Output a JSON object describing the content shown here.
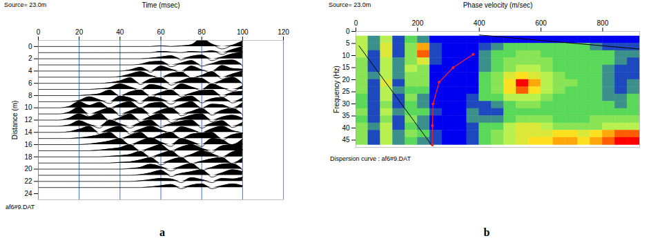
{
  "chart_data": [
    {
      "type": "wiggle",
      "panel_label": "a",
      "source": "Source= 23.0m",
      "file_label": "af6#9.DAT",
      "x_label": "Time (msec)",
      "y_label": "Distance (m)",
      "xlim": [
        0,
        120
      ],
      "xticks": [
        0,
        20,
        40,
        60,
        80,
        100,
        120
      ],
      "ylim": [
        -1,
        25
      ],
      "yticks": [
        0,
        2,
        4,
        6,
        8,
        10,
        12,
        14,
        16,
        18,
        20,
        22,
        24
      ],
      "grid": true,
      "color": "#000000",
      "time": [
        0,
        5,
        10,
        15,
        20,
        25,
        30,
        35,
        40,
        45,
        50,
        55,
        60,
        65,
        70,
        75,
        80,
        85,
        90,
        95,
        100
      ],
      "traces": [
        {
          "distance": 0,
          "amplitudes": [
            0,
            0,
            0,
            0,
            0,
            0,
            0,
            0,
            0,
            0,
            0,
            0,
            0.1,
            0,
            0.1,
            0.3,
            1.3,
            0.4,
            -0.4,
            0.2,
            0.9
          ]
        },
        {
          "distance": 1,
          "amplitudes": [
            0,
            0,
            0,
            0,
            0,
            0,
            0,
            0,
            0,
            0,
            0,
            0,
            0.2,
            0.1,
            0,
            0.2,
            0.1,
            0.3,
            -0.3,
            0.5,
            1.0
          ]
        },
        {
          "distance": 2,
          "amplitudes": [
            0,
            0,
            0,
            0,
            0,
            0,
            0,
            0,
            0,
            0,
            0,
            0.1,
            0.3,
            0.5,
            -0.2,
            0.4,
            0.6,
            -0.3,
            0.3,
            0.8,
            1.1
          ]
        },
        {
          "distance": 3,
          "amplitudes": [
            0,
            0,
            0,
            0,
            0,
            0,
            0,
            0,
            0,
            0,
            0.1,
            0.5,
            0.6,
            -0.3,
            0.3,
            0.7,
            -0.2,
            0.2,
            0.7,
            0.8,
            -0.2
          ]
        },
        {
          "distance": 4,
          "amplitudes": [
            0,
            0,
            0,
            0,
            0,
            0,
            0,
            0,
            0,
            0.2,
            0.6,
            -0.2,
            0.8,
            0.3,
            -0.3,
            0.8,
            0.2,
            -0.3,
            0.9,
            0.4,
            0.3
          ]
        },
        {
          "distance": 5,
          "amplitudes": [
            0,
            0,
            0,
            0,
            0,
            0,
            0,
            0,
            0.1,
            0.5,
            0.9,
            0.3,
            -0.3,
            0.6,
            0.8,
            -0.2,
            0.3,
            0.9,
            -0.3,
            0.5,
            1.0
          ]
        },
        {
          "distance": 6,
          "amplitudes": [
            0,
            0,
            0,
            0,
            0,
            0,
            0,
            0.1,
            0.4,
            0.9,
            -0.2,
            0.7,
            0.9,
            -0.3,
            0.4,
            0.9,
            0.8,
            -0.3,
            0.5,
            1.0,
            -0.2
          ]
        },
        {
          "distance": 7,
          "amplitudes": [
            0,
            0,
            0,
            0,
            0,
            0,
            0.1,
            0.3,
            0.9,
            0.4,
            -0.3,
            0.8,
            0.5,
            -0.3,
            0.9,
            0.4,
            -0.2,
            0.9,
            0.3,
            -0.3,
            0.6
          ]
        },
        {
          "distance": 8,
          "amplitudes": [
            0,
            0,
            0,
            0,
            0,
            0.1,
            0.3,
            0.9,
            -0.2,
            0.6,
            0.9,
            -0.3,
            0.5,
            0.9,
            -0.2,
            0.4,
            0.8,
            0.9,
            -0.3,
            0.5,
            0.7
          ]
        },
        {
          "distance": 9,
          "amplitudes": [
            0,
            0,
            0,
            0,
            0.2,
            0.8,
            0.3,
            -0.3,
            0.9,
            0.6,
            -0.3,
            0.8,
            0.5,
            -0.4,
            0.6,
            0.9,
            -0.2,
            0.5,
            0.7,
            -0.2,
            0.6
          ]
        },
        {
          "distance": 10,
          "amplitudes": [
            0,
            0,
            0,
            0.2,
            1.0,
            0.4,
            0.9,
            -0.3,
            0.6,
            1.0,
            -0.3,
            0.7,
            0.9,
            -0.3,
            0.5,
            1.0,
            -0.2,
            0.6,
            0.5,
            -0.3,
            0.8
          ]
        },
        {
          "distance": 11,
          "amplitudes": [
            0,
            0,
            0,
            0.3,
            1.1,
            -0.4,
            0.5,
            1.0,
            -0.3,
            0.5,
            1.0,
            -0.4,
            0.6,
            1.0,
            -0.3,
            0.4,
            0.9,
            -0.2,
            0.6,
            0.9,
            -0.2
          ]
        },
        {
          "distance": 12,
          "amplitudes": [
            0,
            0,
            0,
            0.3,
            1.0,
            0.5,
            1.1,
            -0.4,
            0.4,
            1.0,
            -0.3,
            0.6,
            1.0,
            -0.4,
            0.3,
            0.8,
            1.0,
            -0.3,
            0.5,
            0.8,
            0.3
          ]
        },
        {
          "distance": 13,
          "amplitudes": [
            0,
            0,
            0,
            0.2,
            0.9,
            0.3,
            -0.3,
            1.0,
            0.4,
            -0.3,
            0.6,
            1.0,
            -0.2,
            0.4,
            0.8,
            1.0,
            -0.3,
            0.5,
            0.9,
            -0.2,
            0.6
          ]
        },
        {
          "distance": 14,
          "amplitudes": [
            0,
            0,
            0,
            0.1,
            0.5,
            1.0,
            -0.3,
            0.6,
            1.0,
            -0.3,
            0.5,
            1.0,
            0.4,
            -0.3,
            0.9,
            0.5,
            -0.2,
            0.6,
            1.0,
            0.3,
            -0.2
          ]
        },
        {
          "distance": 15,
          "amplitudes": [
            0,
            0,
            0,
            0,
            0.1,
            0.3,
            0.6,
            1.0,
            -0.3,
            0.5,
            1.0,
            -0.2,
            0.6,
            1.0,
            -0.3,
            0.7,
            0.9,
            1.0,
            -0.3,
            0.6,
            0.9
          ]
        },
        {
          "distance": 16,
          "amplitudes": [
            0,
            0,
            0,
            0,
            0,
            0.1,
            0.3,
            0.6,
            1.0,
            -0.3,
            0.6,
            1.1,
            0.4,
            -0.3,
            1.0,
            0.5,
            -0.3,
            1.0,
            0.8,
            -0.2,
            0.9
          ]
        },
        {
          "distance": 17,
          "amplitudes": [
            0,
            0,
            0,
            0,
            0,
            0,
            0.1,
            0.3,
            0.5,
            1.0,
            -0.3,
            0.5,
            1.0,
            -0.3,
            0.6,
            1.0,
            0.4,
            -0.3,
            0.8,
            1.0,
            1.1
          ]
        },
        {
          "distance": 18,
          "amplitudes": [
            0,
            0,
            0,
            0,
            0,
            0,
            0,
            0.1,
            0.2,
            0.4,
            0.9,
            -0.3,
            0.5,
            1.0,
            -0.2,
            0.4,
            1.0,
            0.5,
            -0.3,
            0.8,
            1.2
          ]
        },
        {
          "distance": 19,
          "amplitudes": [
            0,
            0,
            0,
            0,
            0,
            0,
            0,
            0,
            0.1,
            0.2,
            0.5,
            0.9,
            -0.3,
            0.5,
            0.9,
            -0.2,
            0.3,
            0.7,
            0.9,
            -0.2,
            0.8
          ]
        },
        {
          "distance": 20,
          "amplitudes": [
            0,
            0,
            0,
            0,
            0,
            0,
            0,
            0,
            0,
            0.1,
            0.3,
            0.8,
            0.4,
            -0.3,
            0.5,
            0.9,
            -0.2,
            0.3,
            0.8,
            0.9,
            -0.2
          ]
        },
        {
          "distance": 21,
          "amplitudes": [
            0,
            0,
            0,
            0,
            0,
            0,
            0,
            0,
            0,
            0,
            0.1,
            0.4,
            0.8,
            -0.2,
            0.3,
            0.6,
            0.9,
            -0.3,
            0.4,
            0.9,
            0.6
          ]
        },
        {
          "distance": 22,
          "amplitudes": [
            0,
            0,
            0,
            0,
            0,
            0,
            0,
            0,
            0,
            0,
            0.1,
            0.3,
            0.5,
            0.4,
            -0.2,
            0.6,
            0.3,
            -0.2,
            0.5,
            0.4,
            0.7
          ]
        },
        {
          "distance": 23,
          "amplitudes": [
            0,
            0,
            0,
            0,
            0,
            0,
            0,
            0,
            0,
            0,
            0,
            0.1,
            0.3,
            0.5,
            -0.2,
            0.4,
            0.6,
            -0.2,
            0.3,
            0.6,
            0.3
          ]
        }
      ]
    },
    {
      "type": "heatmap",
      "panel_label": "b",
      "source": "Source= 23.0m",
      "file_label": "Dispersion curve : af6#9.DAT",
      "x_label": "Phase velocity (m/sec)",
      "y_label": "Frequency (Hz)",
      "xlim": [
        0,
        920
      ],
      "xticks": [
        0,
        200,
        400,
        600,
        800
      ],
      "ylim": [
        0,
        48
      ],
      "yticks": [
        0,
        5,
        10,
        15,
        20,
        25,
        30,
        35,
        40,
        45
      ],
      "velocity_bins": [
        0,
        40,
        80,
        120,
        160,
        200,
        240,
        280,
        320,
        360,
        400,
        440,
        480,
        520,
        560,
        600,
        640,
        680,
        720,
        760,
        800,
        840,
        880,
        920
      ],
      "frequency_bins": [
        2,
        5,
        8,
        11,
        14,
        17,
        20,
        23,
        26,
        29,
        32,
        35,
        38,
        41,
        44,
        47
      ],
      "cells": [
        [
          5,
          2,
          5,
          1,
          3,
          2,
          0,
          0,
          0,
          0,
          0,
          0,
          0,
          0,
          0,
          0,
          0,
          0,
          0,
          0,
          0,
          0,
          0
        ],
        [
          5,
          2,
          6,
          1,
          4,
          8,
          1,
          0,
          0,
          0,
          1,
          2,
          3,
          3,
          3,
          3,
          3,
          3,
          3,
          2,
          1,
          1,
          1
        ],
        [
          5,
          1,
          6,
          1,
          4,
          9,
          1,
          0,
          0,
          0,
          2,
          3,
          3,
          4,
          4,
          3,
          3,
          3,
          3,
          3,
          3,
          2,
          2
        ],
        [
          4,
          1,
          5,
          2,
          4,
          6,
          1,
          0,
          0,
          0,
          2,
          3,
          4,
          4,
          4,
          4,
          3,
          3,
          3,
          3,
          3,
          2,
          1
        ],
        [
          4,
          1,
          5,
          2,
          5,
          4,
          0,
          0,
          0,
          0,
          2,
          3,
          4,
          5,
          5,
          4,
          3,
          3,
          3,
          3,
          2,
          1,
          1
        ],
        [
          4,
          2,
          5,
          2,
          4,
          4,
          0,
          0,
          0,
          0,
          3,
          4,
          6,
          7,
          6,
          5,
          4,
          3,
          3,
          3,
          2,
          1,
          1
        ],
        [
          4,
          1,
          6,
          1,
          4,
          4,
          0,
          0,
          0,
          0,
          3,
          4,
          7,
          10,
          8,
          5,
          4,
          4,
          3,
          3,
          2,
          1,
          2
        ],
        [
          4,
          1,
          5,
          2,
          3,
          3,
          0,
          0,
          0,
          0,
          3,
          4,
          7,
          9,
          7,
          5,
          4,
          3,
          3,
          3,
          2,
          1,
          2
        ],
        [
          3,
          1,
          5,
          1,
          4,
          2,
          0,
          0,
          0,
          1,
          3,
          3,
          5,
          5,
          5,
          4,
          3,
          3,
          3,
          3,
          2,
          2,
          3
        ],
        [
          3,
          1,
          4,
          1,
          3,
          2,
          0,
          0,
          0,
          1,
          1,
          2,
          3,
          4,
          4,
          3,
          3,
          3,
          3,
          3,
          3,
          2,
          3
        ],
        [
          4,
          1,
          5,
          2,
          3,
          3,
          1,
          0,
          0,
          2,
          1,
          1,
          3,
          3,
          3,
          3,
          3,
          3,
          3,
          3,
          3,
          3,
          3
        ],
        [
          3,
          1,
          4,
          1,
          4,
          2,
          0,
          0,
          0,
          2,
          2,
          2,
          3,
          4,
          4,
          4,
          3,
          3,
          3,
          4,
          4,
          4,
          4
        ],
        [
          4,
          2,
          5,
          1,
          3,
          2,
          0,
          0,
          0,
          1,
          3,
          3,
          5,
          6,
          6,
          5,
          4,
          4,
          4,
          4,
          5,
          5,
          5
        ],
        [
          4,
          1,
          5,
          2,
          4,
          3,
          1,
          0,
          0,
          1,
          3,
          4,
          5,
          6,
          6,
          6,
          7,
          7,
          6,
          7,
          8,
          9,
          9
        ],
        [
          4,
          1,
          5,
          2,
          3,
          2,
          1,
          0,
          0,
          1,
          3,
          4,
          5,
          6,
          7,
          7,
          8,
          8,
          7,
          8,
          9,
          10,
          10
        ]
      ],
      "dispersion_curve": {
        "velocity": [
          380,
          315,
          270,
          250,
          248,
          248
        ],
        "frequency": [
          9.5,
          15,
          21,
          30,
          39,
          47
        ],
        "color": "#ff2020",
        "marker": "dot"
      },
      "reference_lines": [
        {
          "velocity": [
            10,
            245
          ],
          "frequency": [
            6,
            47
          ],
          "color": "#000000"
        },
        {
          "velocity": [
            400,
            920
          ],
          "frequency": [
            1.5,
            7.3
          ],
          "color": "#000000"
        }
      ]
    }
  ]
}
